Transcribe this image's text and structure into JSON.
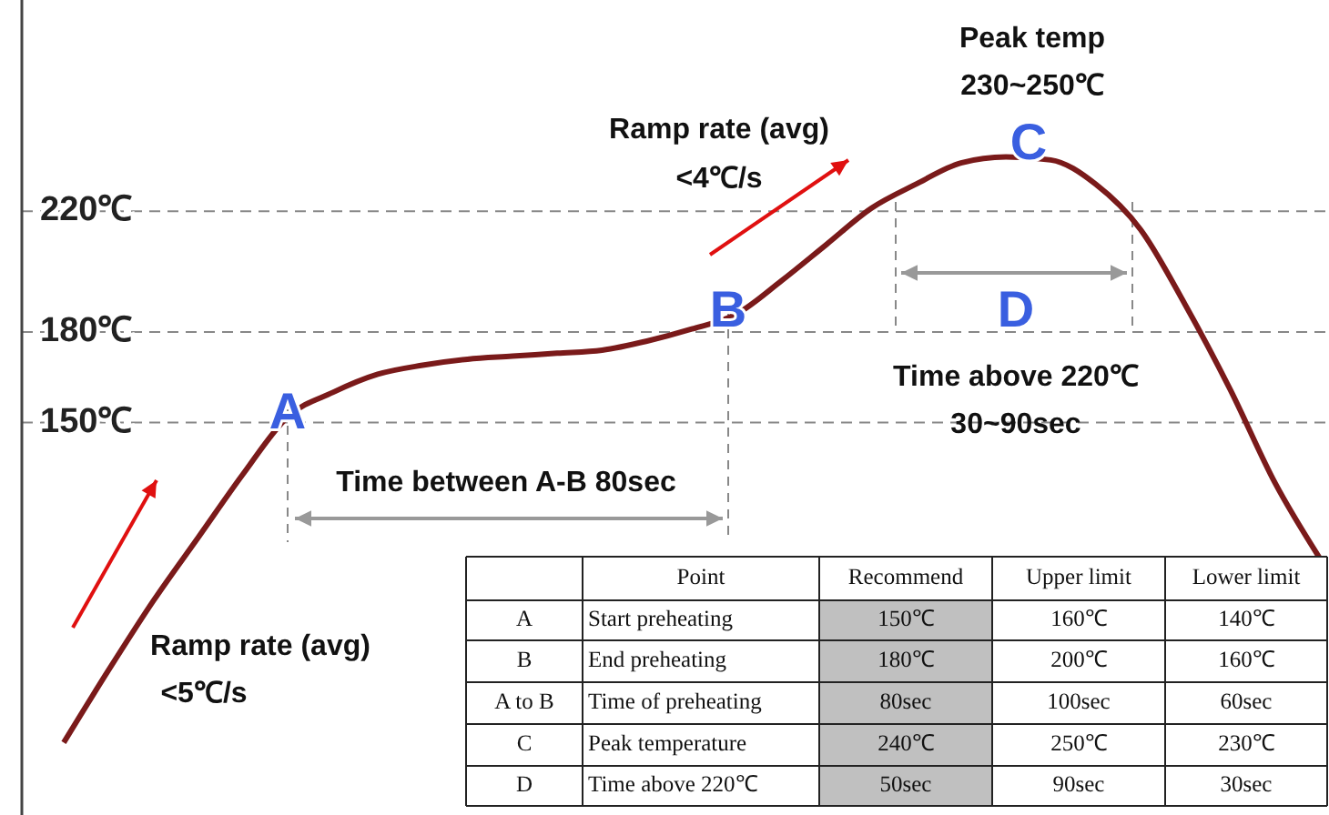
{
  "chart_data": [
    {
      "type": "line",
      "categories": [
        null,
        null,
        null,
        null,
        null,
        null,
        null,
        null,
        null,
        null,
        null,
        null,
        null,
        null,
        null,
        null,
        null,
        null,
        null,
        null,
        null,
        null,
        null,
        null,
        null,
        null,
        null,
        null,
        null
      ],
      "series": [
        {
          "color": "#7a1a1a",
          "values": [
            44,
            68,
            91,
            112,
            133,
            152,
            160,
            166,
            169,
            171,
            172,
            173,
            174,
            177,
            181,
            186,
            197,
            209,
            221,
            229,
            236,
            238,
            237,
            229,
            214,
            189,
            161,
            130,
            105
          ]
        }
      ],
      "ylim": [
        20,
        290
      ],
      "yticks": [
        {
          "value": 150,
          "label": "150℃"
        },
        {
          "value": 180,
          "label": "180℃"
        },
        {
          "value": 220,
          "label": "220℃"
        }
      ],
      "grid": "y",
      "tick_labels": "y",
      "marker": "none",
      "line_style": "solid",
      "annotations": [
        "Peak temp",
        "230~250℃",
        "Ramp rate (avg)",
        "<4℃/s",
        "C",
        "B",
        "A",
        "D",
        "Time above 220℃",
        "30~90sec",
        "Time between A-B 80sec",
        "Ramp rate (avg)",
        "<5℃/s"
      ]
    },
    {
      "type": "other",
      "annotations": [
        "Point",
        "Recommend",
        "Upper limit",
        "Lower limit",
        "A",
        "Start preheating",
        "150℃",
        "160℃",
        "140℃",
        "B",
        "End preheating",
        "180℃",
        "200℃",
        "160℃",
        "A to B",
        "Time of preheating",
        "80sec",
        "100sec",
        "60sec",
        "C",
        "Peak temperature",
        "240℃",
        "250℃",
        "230℃",
        "D",
        "Time above 220℃",
        "50sec",
        "90sec",
        "30sec"
      ]
    }
  ]
}
